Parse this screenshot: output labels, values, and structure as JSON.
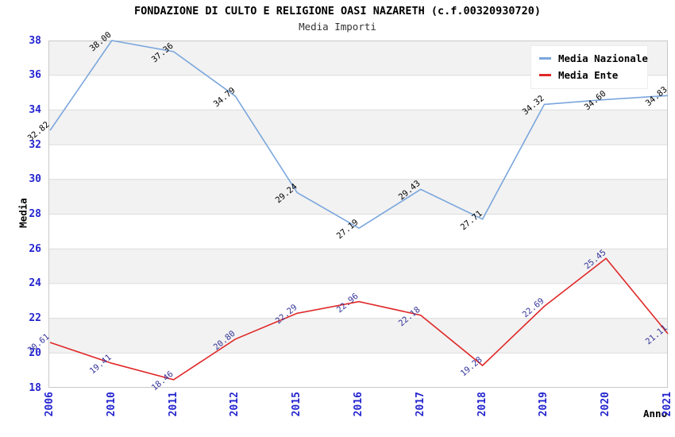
{
  "header": {
    "title": "FONDAZIONE DI CULTO E RELIGIONE OASI NAZARETH (c.f.00320930720)",
    "subtitle": "Media Importi"
  },
  "chart_data": {
    "type": "line",
    "title": "FONDAZIONE DI CULTO E RELIGIONE OASI NAZARETH (c.f.00320930720)",
    "subtitle": "Media Importi",
    "xlabel": "Anno",
    "ylabel": "Media",
    "categories": [
      "2006",
      "2010",
      "2011",
      "2012",
      "2015",
      "2016",
      "2017",
      "2018",
      "2019",
      "2020",
      "2021"
    ],
    "series": [
      {
        "name": "Media Nazionale",
        "color": "#7aa6dc",
        "label_color": "#000000",
        "values": [
          32.82,
          38.0,
          37.36,
          34.79,
          29.24,
          27.19,
          29.43,
          27.71,
          34.32,
          34.6,
          34.83
        ]
      },
      {
        "name": "Media Ente",
        "color": "#e02828",
        "label_color": "#333399",
        "values": [
          20.61,
          19.41,
          18.46,
          20.8,
          22.29,
          22.96,
          22.18,
          19.28,
          22.69,
          25.45,
          21.11
        ]
      }
    ],
    "ylim": [
      18,
      38
    ],
    "ytick_step": 2,
    "yticks": [
      18,
      20,
      22,
      24,
      26,
      28,
      30,
      32,
      34,
      36,
      38
    ],
    "grid": "horizontal-bands",
    "band_color": "#f2f2f2",
    "gridline_color": "#dcdcdc",
    "border_color": "#c8c8c8",
    "tick_label_color": "#2424d0",
    "legend_position": "top-right"
  }
}
